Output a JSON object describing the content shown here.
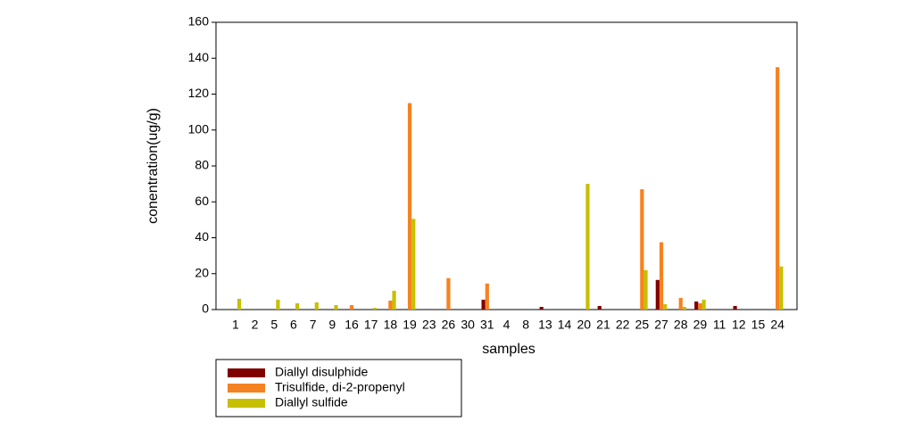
{
  "chart_data": {
    "type": "bar",
    "xlabel": "samples",
    "ylabel": "conentration(ug/g)",
    "categories": [
      "1",
      "2",
      "5",
      "6",
      "7",
      "9",
      "16",
      "17",
      "18",
      "19",
      "23",
      "26",
      "30",
      "31",
      "4",
      "8",
      "13",
      "14",
      "20",
      "21",
      "22",
      "25",
      "27",
      "28",
      "29",
      "11",
      "12",
      "15",
      "24"
    ],
    "series": [
      {
        "name": "Diallyl disulphide",
        "color": "#800000",
        "values": [
          0,
          0,
          0,
          0,
          0,
          0,
          0,
          0,
          0,
          0,
          0,
          0,
          0,
          5.5,
          0,
          0,
          1.5,
          0,
          0,
          2,
          0,
          0,
          16.5,
          0,
          4.5,
          0,
          2,
          0,
          0
        ]
      },
      {
        "name": "Trisulfide, di-2-propenyl",
        "color": "#f58220",
        "values": [
          0,
          0,
          0,
          0,
          0,
          0,
          2.5,
          0,
          5,
          115,
          0,
          17.5,
          0,
          14.5,
          0,
          0,
          0,
          0,
          0,
          0,
          0,
          67,
          37.5,
          6.5,
          3.5,
          0,
          0,
          0,
          135
        ]
      },
      {
        "name": "Diallyl sulfide",
        "color": "#c6c000",
        "values": [
          6,
          0,
          5.5,
          3.5,
          4,
          2.5,
          0,
          1,
          10.5,
          50.5,
          0,
          0,
          0,
          0,
          0,
          0,
          0,
          0,
          70,
          0,
          0,
          22,
          3,
          1.5,
          5.5,
          0,
          0,
          0,
          24
        ]
      }
    ],
    "ylim": [
      0,
      160
    ],
    "yticks": [
      0,
      20,
      40,
      60,
      80,
      100,
      120,
      140,
      160
    ],
    "legend": "bottom-left"
  }
}
